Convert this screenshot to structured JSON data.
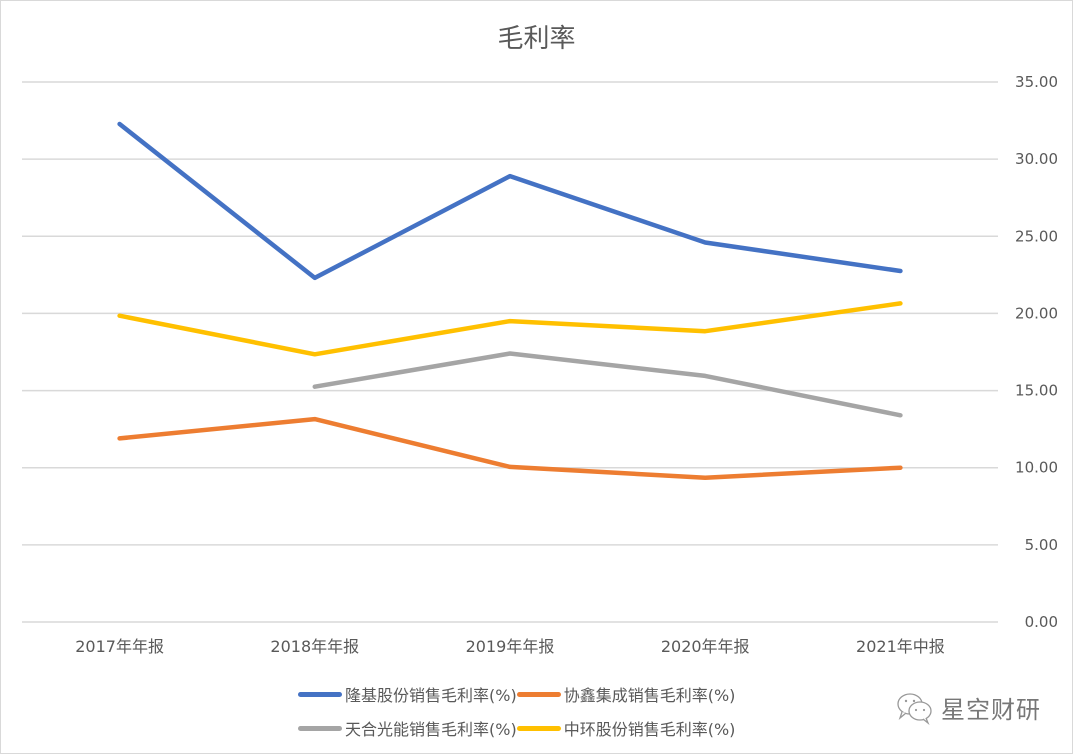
{
  "chart_data": {
    "type": "line",
    "title": "毛利率",
    "xlabel": "",
    "ylabel": "",
    "categories": [
      "2017年年报",
      "2018年年报",
      "2019年年报",
      "2020年年报",
      "2021年中报"
    ],
    "y_axis": {
      "position": "right",
      "ylim": [
        0,
        35
      ],
      "ticks": [
        "0.00",
        "5.00",
        "10.00",
        "15.00",
        "20.00",
        "25.00",
        "30.00",
        "35.00"
      ]
    },
    "grid": true,
    "legend_position": "bottom",
    "series": [
      {
        "name": "隆基股份销售毛利率(%)",
        "color": "#4472C4",
        "values": [
          32.28,
          22.3,
          28.9,
          24.6,
          22.75
        ]
      },
      {
        "name": "协鑫集成销售毛利率(%)",
        "color": "#ED7D31",
        "values": [
          11.9,
          13.15,
          10.05,
          9.35,
          10.0
        ]
      },
      {
        "name": "天合光能销售毛利率(%)",
        "color": "#A5A5A5",
        "values": [
          null,
          15.25,
          17.4,
          15.95,
          13.4
        ]
      },
      {
        "name": "中环股份销售毛利率(%)",
        "color": "#FFC000",
        "values": [
          19.85,
          17.35,
          19.5,
          18.85,
          20.65
        ]
      }
    ]
  },
  "legend": {
    "items": [
      {
        "label": "隆基股份销售毛利率(%)",
        "color": "#4472C4"
      },
      {
        "label": "协鑫集成销售毛利率(%)",
        "color": "#ED7D31"
      },
      {
        "label": "天合光能销售毛利率(%)",
        "color": "#A5A5A5"
      },
      {
        "label": "中环股份销售毛利率(%)",
        "color": "#FFC000"
      }
    ]
  },
  "watermark": {
    "icon": "wechat-icon",
    "text": "星空财研"
  }
}
